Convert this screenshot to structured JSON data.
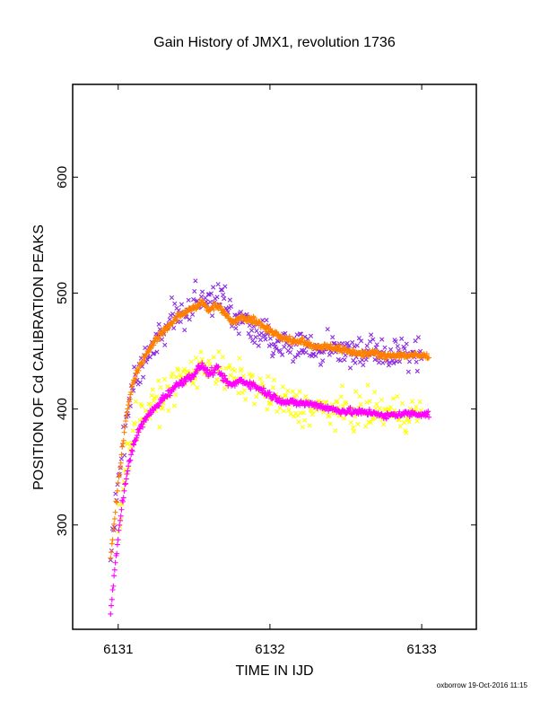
{
  "chart_data": {
    "type": "scatter",
    "title": "Gain History of JMX1, revolution 1736",
    "xlabel": "TIME IN IJD",
    "ylabel": "POSITION OF Cd CALIBRATION PEAKS",
    "xlim": [
      6130.7,
      6133.36
    ],
    "ylim": [
      210,
      680
    ],
    "x_ticks": [
      6131,
      6132,
      6133
    ],
    "x_tick_labels": [
      "6131",
      "6132",
      "6133"
    ],
    "y_ticks": [
      300,
      400,
      500,
      600
    ],
    "y_tick_labels": [
      "300",
      "400",
      "500",
      "600"
    ],
    "grid": false,
    "legend": "none",
    "footer": "oxborrow 19-Oct-2016 11:15",
    "series": [
      {
        "marker": "x",
        "color": "#8a2be2",
        "scatter": 14,
        "x": [
          6130.95,
          6131.0,
          6131.05,
          6131.1,
          6131.2,
          6131.3,
          6131.4,
          6131.5,
          6131.6,
          6131.7,
          6131.75,
          6131.8,
          6131.9,
          6132.0,
          6132.1,
          6132.2,
          6132.3,
          6132.5,
          6132.7,
          6132.8,
          6133.0
        ],
        "values": [
          272,
          335,
          395,
          425,
          450,
          470,
          483,
          490,
          490,
          492,
          482,
          478,
          470,
          462,
          455,
          453,
          450,
          450,
          448,
          446,
          450
        ]
      },
      {
        "marker": "plus",
        "color": "#ff8000",
        "scatter": 1.5,
        "x": [
          6130.95,
          6131.0,
          6131.05,
          6131.1,
          6131.15,
          6131.2,
          6131.25,
          6131.3,
          6131.4,
          6131.5,
          6131.55,
          6131.6,
          6131.65,
          6131.7,
          6131.75,
          6131.8,
          6131.9,
          6132.0,
          6132.1,
          6132.2,
          6132.3,
          6132.4,
          6132.5,
          6132.6,
          6132.7,
          6132.75,
          6132.8,
          6132.9,
          6133.0,
          6133.05
        ],
        "values": [
          272,
          335,
          392,
          425,
          440,
          450,
          460,
          468,
          480,
          488,
          492,
          485,
          490,
          484,
          474,
          480,
          476,
          468,
          460,
          458,
          454,
          454,
          450,
          448,
          448,
          445,
          447,
          446,
          446,
          445
        ]
      },
      {
        "marker": "x",
        "color": "#ffff00",
        "scatter": 14,
        "x": [
          6131.0,
          6131.05,
          6131.1,
          6131.2,
          6131.3,
          6131.4,
          6131.5,
          6131.6,
          6131.7,
          6131.8,
          6131.9,
          6132.0,
          6132.1,
          6132.2,
          6132.3,
          6132.5,
          6132.7,
          6132.8,
          6133.0
        ],
        "values": [
          300,
          350,
          385,
          400,
          410,
          425,
          432,
          440,
          428,
          425,
          420,
          410,
          405,
          402,
          400,
          398,
          398,
          397,
          395
        ]
      },
      {
        "marker": "plus",
        "color": "#ff00ff",
        "scatter": 1.5,
        "x": [
          6130.95,
          6131.0,
          6131.03,
          6131.06,
          6131.1,
          6131.15,
          6131.2,
          6131.25,
          6131.3,
          6131.4,
          6131.5,
          6131.55,
          6131.6,
          6131.65,
          6131.7,
          6131.75,
          6131.8,
          6131.9,
          6132.0,
          6132.1,
          6132.2,
          6132.3,
          6132.4,
          6132.5,
          6132.6,
          6132.7,
          6132.75,
          6132.8,
          6132.9,
          6133.0,
          6133.05
        ],
        "values": [
          225,
          290,
          322,
          345,
          370,
          385,
          395,
          402,
          410,
          422,
          430,
          438,
          430,
          435,
          425,
          420,
          425,
          420,
          412,
          406,
          405,
          404,
          400,
          398,
          397,
          397,
          393,
          395,
          396,
          396,
          395
        ]
      }
    ]
  }
}
